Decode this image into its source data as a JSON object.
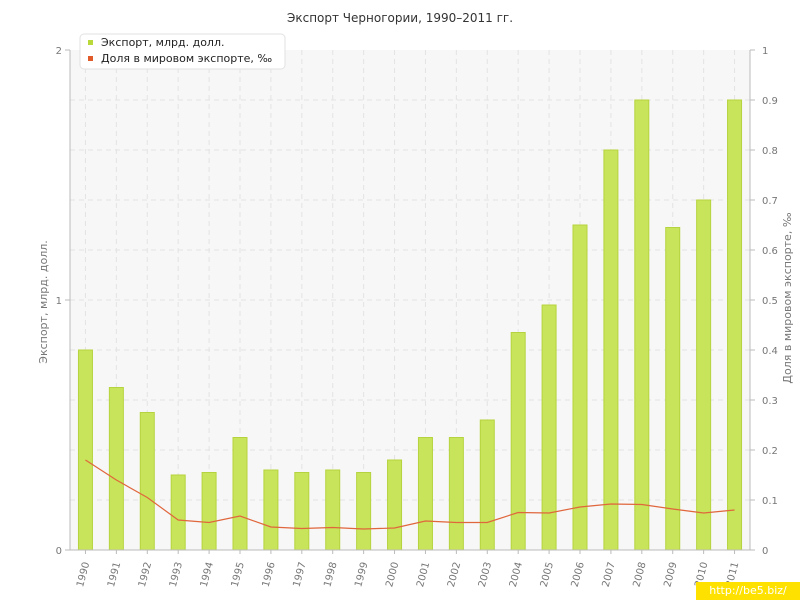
{
  "chart_data": {
    "type": "bar",
    "title": "Экспорт Черногории, 1990–2011 гг.",
    "categories": [
      "1990",
      "1991",
      "1992",
      "1993",
      "1994",
      "1995",
      "1996",
      "1997",
      "1998",
      "1999",
      "2000",
      "2001",
      "2002",
      "2003",
      "2004",
      "2005",
      "2006",
      "2007",
      "2008",
      "2009",
      "2010",
      "2011"
    ],
    "series": [
      {
        "name": "Экспорт, млрд. долл.",
        "kind": "bar",
        "axis": "left",
        "values": [
          0.8,
          0.65,
          0.55,
          0.3,
          0.31,
          0.45,
          0.32,
          0.31,
          0.32,
          0.31,
          0.36,
          0.45,
          0.45,
          0.52,
          0.87,
          0.98,
          1.3,
          1.6,
          1.8,
          1.29,
          1.4,
          1.8
        ]
      },
      {
        "name": "Доля в мировом экспорте, ‰",
        "kind": "line",
        "axis": "right",
        "values": [
          0.18,
          0.14,
          0.105,
          0.06,
          0.055,
          0.068,
          0.046,
          0.043,
          0.045,
          0.042,
          0.044,
          0.058,
          0.055,
          0.055,
          0.075,
          0.074,
          0.086,
          0.092,
          0.091,
          0.082,
          0.074,
          0.08
        ]
      }
    ],
    "ylabel": "Экспорт, млрд. долл.",
    "y2label": "Доля в мировом экспорте, ‰",
    "ylim": [
      0,
      2
    ],
    "y2lim": [
      0,
      1
    ],
    "yticks": [
      "0",
      "1",
      "2"
    ],
    "y2ticks": [
      "0",
      "0.1",
      "0.2",
      "0.3",
      "0.4",
      "0.5",
      "0.6",
      "0.7",
      "0.8",
      "0.9",
      "1"
    ],
    "grid": true,
    "legend": "top-left",
    "colors": {
      "bar": "#c8e45a",
      "bar_edge": "#b5d33e",
      "line": "#e0663c",
      "legend_bar": "#b9d83a",
      "legend_line": "#e05a2a"
    }
  },
  "watermark": "http://be5.biz/"
}
